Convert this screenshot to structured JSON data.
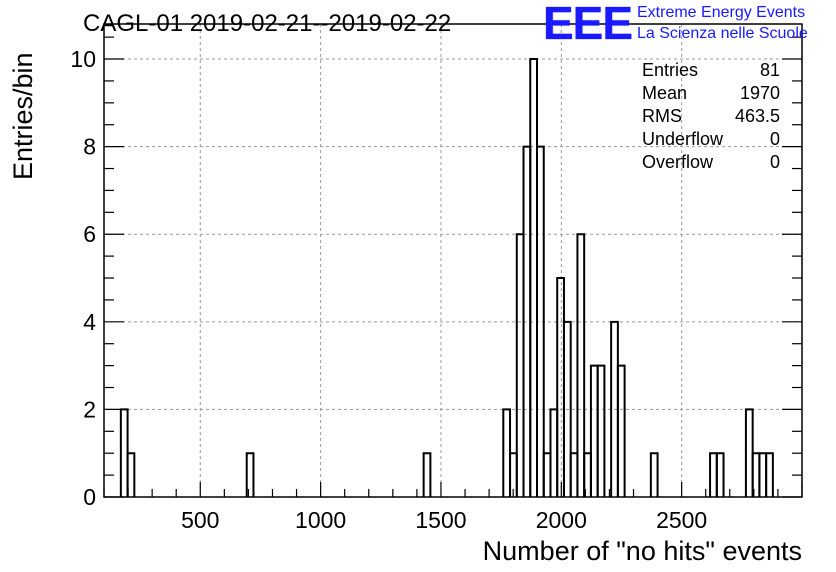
{
  "header": {
    "title": "CAGL-01 2019-02-21--2019-02-22",
    "logo_text": "EEE",
    "org_line1": "Extreme Energy Events",
    "org_line2": "La Scienza nelle Scuole"
  },
  "stats": [
    {
      "label": "Entries",
      "value": "81"
    },
    {
      "label": "Mean",
      "value": "1970"
    },
    {
      "label": "RMS",
      "value": "463.5"
    },
    {
      "label": "Underflow",
      "value": "0"
    },
    {
      "label": "Overflow",
      "value": "0"
    }
  ],
  "colors": {
    "logo": "#1a1aff",
    "grid": "#9a9a9a",
    "line": "#000000"
  },
  "chart_data": {
    "type": "histogram",
    "title": "CAGL-01 2019-02-21--2019-02-22",
    "xlabel": "Number of \"no hits\" events",
    "ylabel": "Entries/bin",
    "xlim": [
      100,
      3000
    ],
    "ylim": [
      0,
      10.8
    ],
    "xticks": [
      500,
      1000,
      1500,
      2000,
      2500
    ],
    "yticks": [
      0,
      2,
      4,
      6,
      8,
      10
    ],
    "grid": true,
    "bin_width": 28,
    "bins": [
      {
        "x0": 170,
        "x1": 198,
        "value": 2
      },
      {
        "x0": 198,
        "x1": 226,
        "value": 1
      },
      {
        "x0": 693,
        "x1": 721,
        "value": 1
      },
      {
        "x0": 1428,
        "x1": 1456,
        "value": 1
      },
      {
        "x0": 1759,
        "x1": 1787,
        "value": 2
      },
      {
        "x0": 1787,
        "x1": 1815,
        "value": 1
      },
      {
        "x0": 1815,
        "x1": 1843,
        "value": 6
      },
      {
        "x0": 1843,
        "x1": 1871,
        "value": 8
      },
      {
        "x0": 1871,
        "x1": 1899,
        "value": 10
      },
      {
        "x0": 1899,
        "x1": 1927,
        "value": 8
      },
      {
        "x0": 1927,
        "x1": 1955,
        "value": 1
      },
      {
        "x0": 1955,
        "x1": 1983,
        "value": 2
      },
      {
        "x0": 1983,
        "x1": 2011,
        "value": 5
      },
      {
        "x0": 2011,
        "x1": 2039,
        "value": 4
      },
      {
        "x0": 2039,
        "x1": 2067,
        "value": 1
      },
      {
        "x0": 2067,
        "x1": 2095,
        "value": 6
      },
      {
        "x0": 2095,
        "x1": 2123,
        "value": 1
      },
      {
        "x0": 2123,
        "x1": 2151,
        "value": 3
      },
      {
        "x0": 2151,
        "x1": 2179,
        "value": 3
      },
      {
        "x0": 2179,
        "x1": 2207,
        "value": 0
      },
      {
        "x0": 2207,
        "x1": 2235,
        "value": 4
      },
      {
        "x0": 2235,
        "x1": 2263,
        "value": 3
      },
      {
        "x0": 2372,
        "x1": 2400,
        "value": 1
      },
      {
        "x0": 2618,
        "x1": 2646,
        "value": 1
      },
      {
        "x0": 2646,
        "x1": 2674,
        "value": 1
      },
      {
        "x0": 2767,
        "x1": 2795,
        "value": 2
      },
      {
        "x0": 2795,
        "x1": 2823,
        "value": 1
      },
      {
        "x0": 2823,
        "x1": 2851,
        "value": 1
      },
      {
        "x0": 2851,
        "x1": 2879,
        "value": 1
      }
    ]
  }
}
